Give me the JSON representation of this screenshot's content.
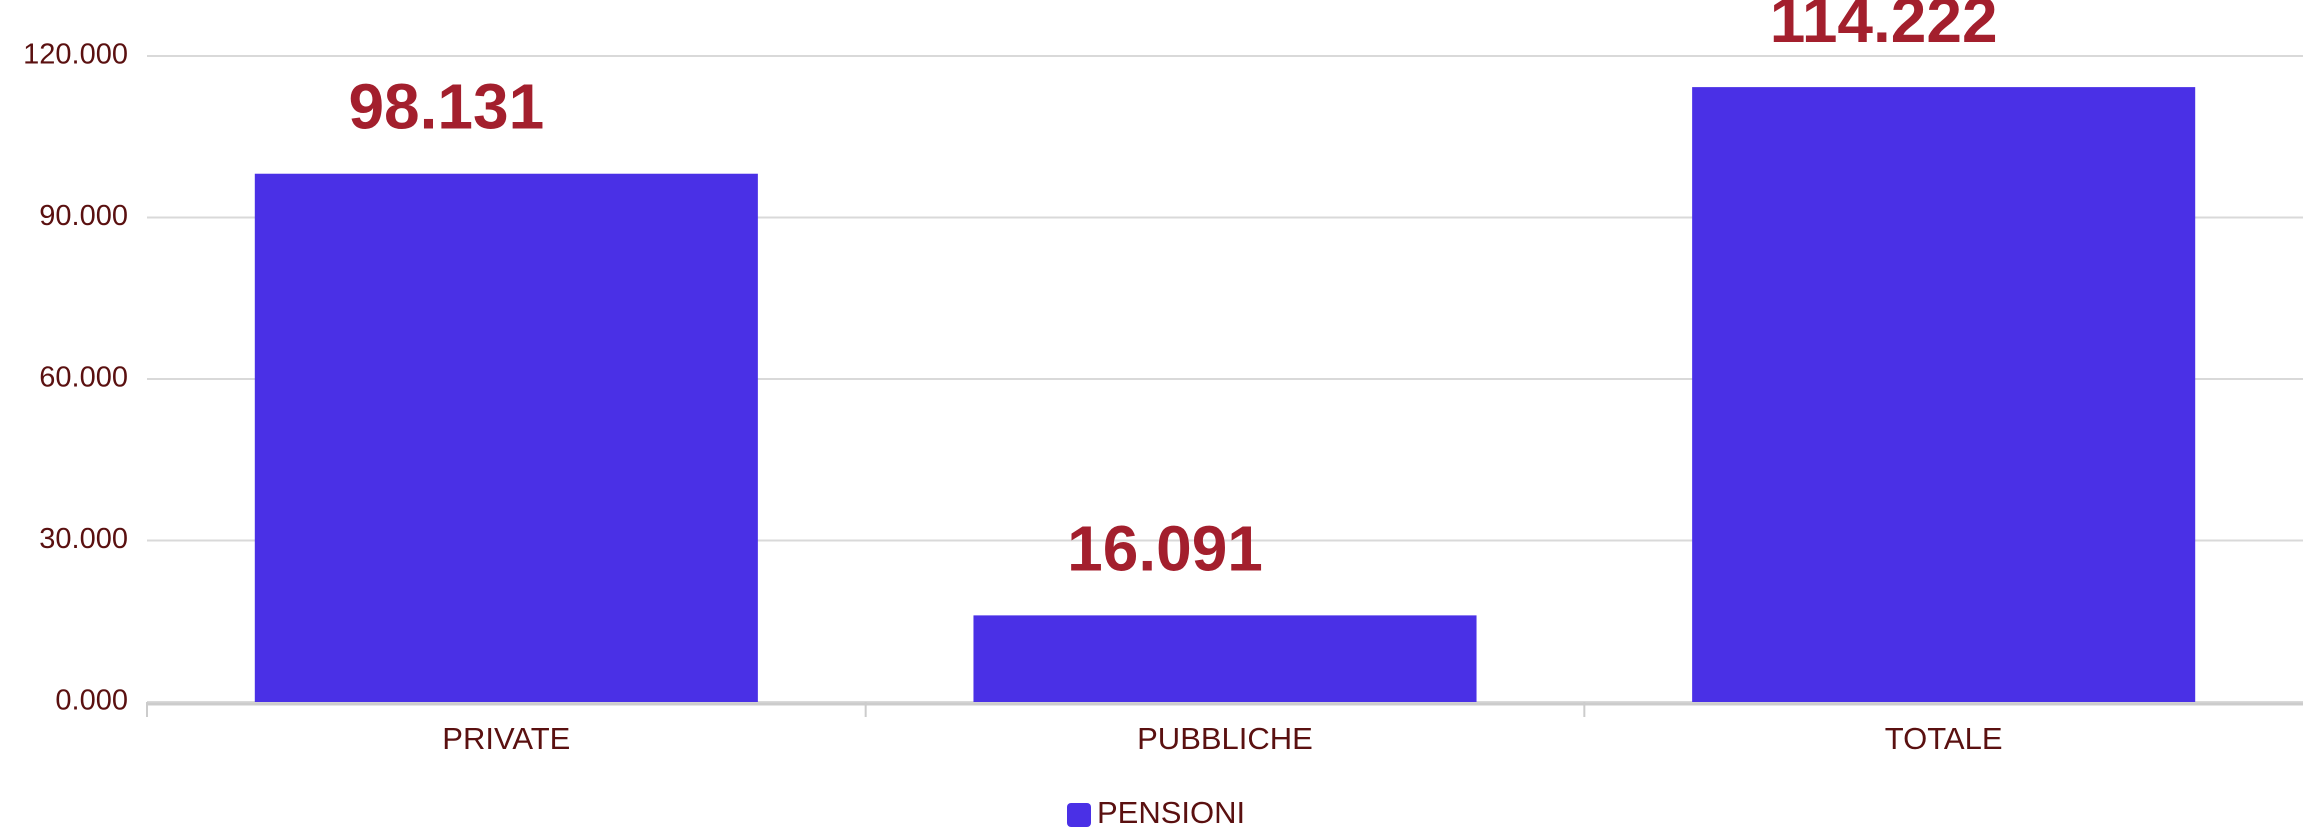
{
  "chart_data": {
    "type": "bar",
    "categories": [
      "PRIVATE",
      "PUBBLICHE",
      "TOTALE"
    ],
    "series": [
      {
        "name": "PENSIONI",
        "color": "#4a30e6",
        "values": [
          98131,
          16091,
          114222
        ],
        "value_labels": [
          "98.131",
          "16.091",
          "114.222"
        ]
      }
    ],
    "ylim": [
      0,
      120000
    ],
    "yticks": [
      {
        "value": 0,
        "label": "0.000"
      },
      {
        "value": 30000,
        "label": "30.000"
      },
      {
        "value": 60000,
        "label": "60.000"
      },
      {
        "value": 90000,
        "label": "90.000"
      },
      {
        "value": 120000,
        "label": "120.000"
      }
    ],
    "grid": true,
    "legend": "bottom"
  }
}
